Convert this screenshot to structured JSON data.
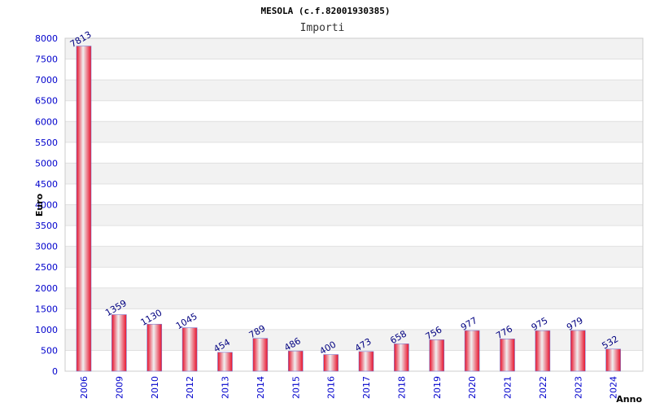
{
  "chart_data": {
    "type": "bar",
    "title": "MESOLA (c.f.82001930385)",
    "subtitle": "Importi",
    "xlabel": "Anno",
    "ylabel": "Euro",
    "categories": [
      "2006",
      "2009",
      "2010",
      "2012",
      "2013",
      "2014",
      "2015",
      "2016",
      "2017",
      "2018",
      "2019",
      "2020",
      "2021",
      "2022",
      "2023",
      "2024"
    ],
    "values": [
      7813,
      1359,
      1130,
      1045,
      454,
      789,
      486,
      400,
      473,
      658,
      756,
      977,
      776,
      975,
      979,
      532
    ],
    "ylim": [
      0,
      8000
    ],
    "ytick_step": 500,
    "grid": true,
    "colors": {
      "bar": "#e8102a",
      "bar_highlight": "#f0f0f0",
      "stripe": "#f2f2f2",
      "axis_text": "#0000cc",
      "value_text": "#000080"
    }
  }
}
